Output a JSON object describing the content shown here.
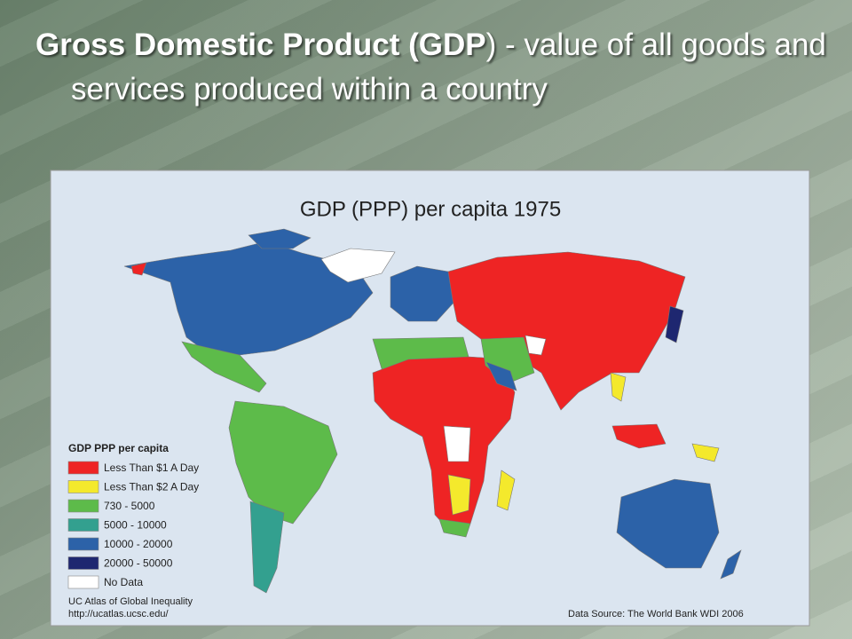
{
  "slide": {
    "title_bold": "Gross Domestic Product (GDP",
    "title_rest": ") - value of all goods and services produced within a country"
  },
  "map": {
    "title": "GDP (PPP) per capita 1975",
    "legend": {
      "title": "GDP PPP per capita",
      "items": [
        {
          "label": "Less Than $1 A Day",
          "color": "#ee2424"
        },
        {
          "label": "Less Than $2 A Day",
          "color": "#f4e92c"
        },
        {
          "label": "730 - 5000",
          "color": "#5dbb4a"
        },
        {
          "label": "5000 - 10000",
          "color": "#33a08f"
        },
        {
          "label": "10000 - 20000",
          "color": "#2c62a8"
        },
        {
          "label": "20000 - 50000",
          "color": "#1e2770"
        },
        {
          "label": "No Data",
          "color": "#ffffff"
        }
      ]
    },
    "credit": [
      "UC Atlas of Global Inequality",
      "http://ucatlas.ucsc.edu/"
    ],
    "source": "Data Source: The World Bank WDI 2006"
  }
}
